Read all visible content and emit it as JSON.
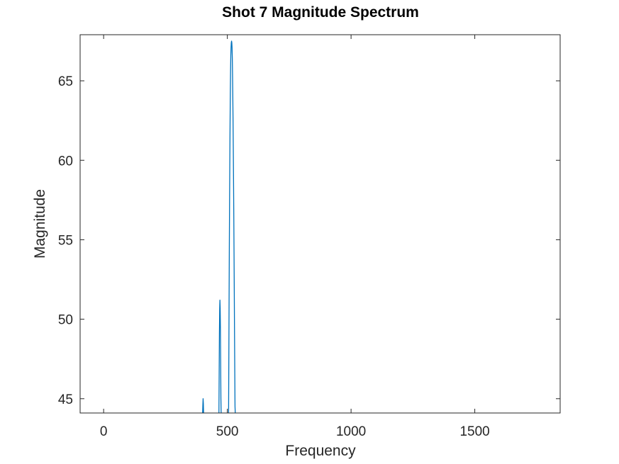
{
  "chart_data": {
    "type": "line",
    "title": "Shot 7 Magnitude Spectrum",
    "xlabel": "Frequency",
    "ylabel": "Magnitude",
    "xlim": [
      -95,
      1845
    ],
    "ylim": [
      44.1,
      67.9
    ],
    "xticks": [
      0,
      500,
      1000,
      1500
    ],
    "yticks": [
      45,
      50,
      55,
      60,
      65
    ],
    "grid": false,
    "legend": "none",
    "colors": {
      "line": "#0072BD",
      "axis": "#262626",
      "background": "#ffffff"
    },
    "series": [
      {
        "segments": [
          [
            [
              400,
              44.1
            ],
            [
              401,
              44.6
            ],
            [
              402,
              45.0
            ],
            [
              403,
              44.7
            ],
            [
              404,
              44.1
            ]
          ],
          [
            [
              466,
              44.1
            ],
            [
              467,
              46.8
            ],
            [
              468,
              49.2
            ],
            [
              469,
              50.6
            ],
            [
              470,
              51.2
            ],
            [
              471,
              50.7
            ],
            [
              472,
              49.4
            ],
            [
              473,
              47.4
            ],
            [
              474,
              45.0
            ],
            [
              475,
              44.1
            ]
          ],
          [
            [
              505,
              44.1
            ],
            [
              506,
              47.5
            ],
            [
              507,
              51.2
            ],
            [
              508,
              54.5
            ],
            [
              509,
              57.4
            ],
            [
              510,
              60.0
            ],
            [
              511,
              62.3
            ],
            [
              512,
              64.2
            ],
            [
              513,
              65.6
            ],
            [
              514,
              66.6
            ],
            [
              515,
              67.1
            ],
            [
              516,
              67.4
            ],
            [
              517,
              67.5
            ],
            [
              518,
              67.4
            ],
            [
              519,
              67.1
            ],
            [
              520,
              66.4
            ],
            [
              521,
              65.4
            ],
            [
              522,
              64.1
            ],
            [
              523,
              62.6
            ],
            [
              524,
              60.8
            ],
            [
              525,
              58.8
            ],
            [
              526,
              56.6
            ],
            [
              527,
              54.2
            ],
            [
              528,
              51.7
            ],
            [
              529,
              49.1
            ],
            [
              530,
              46.7
            ],
            [
              531,
              44.5
            ],
            [
              532,
              44.1
            ]
          ]
        ]
      }
    ]
  }
}
